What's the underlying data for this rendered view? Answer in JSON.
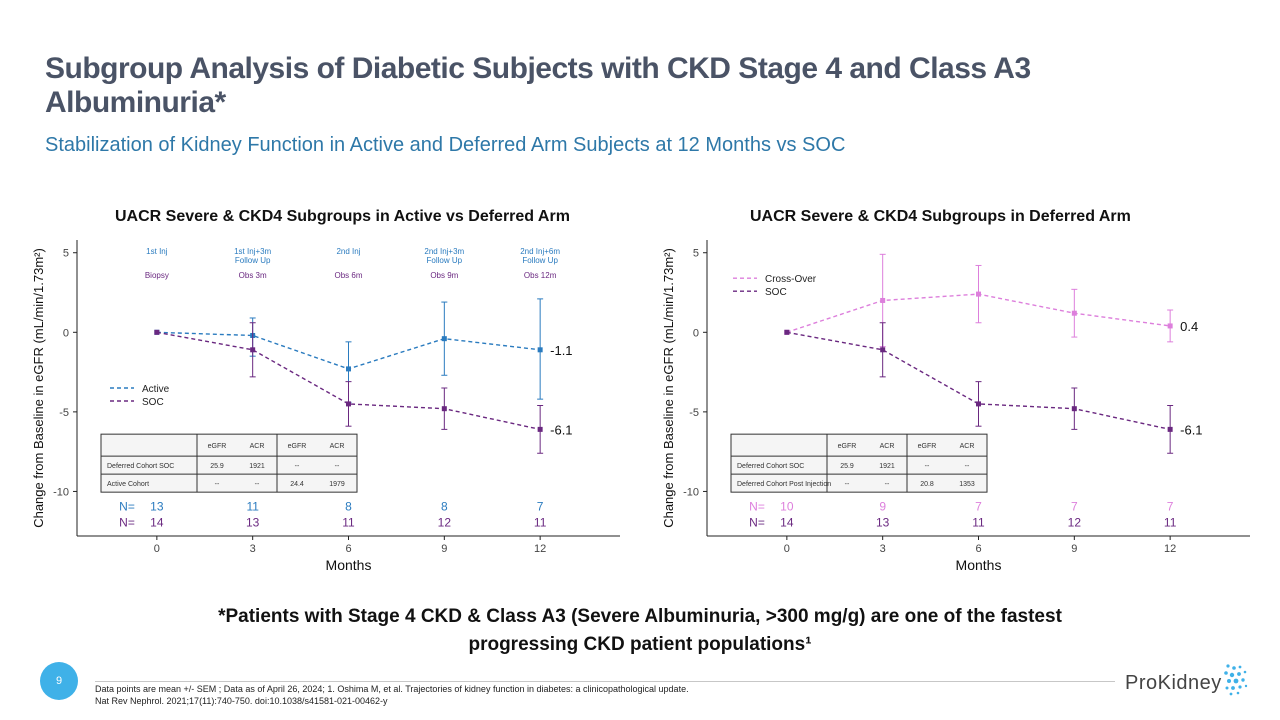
{
  "slide": {
    "title": "Subgroup Analysis of Diabetic Subjects with CKD Stage 4 and Class A3 Albuminuria*",
    "subtitle": "Stabilization of Kidney Function in Active and Deferred Arm Subjects at 12 Months vs SOC",
    "footnote_line1": "*Patients with Stage 4 CKD & Class A3 (Severe Albuminuria, >300 mg/g) are one of the fastest",
    "footnote_line2": "progressing CKD patient populations¹",
    "page_number": "9",
    "references_line1": "Data points are mean +/- SEM ; Data as of April 26, 2024; 1. Oshima M, et al. Trajectories of kidney function in diabetes: a clinicopathological update.",
    "references_line2": "Nat Rev Nephrol. 2021;17(11):740-750. doi:10.1038/s41581-021-00462-y",
    "logo_text": "ProKidney"
  },
  "chart_data": [
    {
      "type": "line",
      "title": "UACR Severe & CKD4 Subgroups in Active vs Deferred Arm",
      "xlabel": "Months",
      "ylabel": "Change from Baseline in eGFR (mL/min/1.73m²)",
      "x": [
        0,
        3,
        6,
        9,
        12
      ],
      "xlim": [
        -2.5,
        14.5
      ],
      "ylim": [
        -12.8,
        5.8
      ],
      "yticks": [
        5,
        0,
        -5,
        -10
      ],
      "grid": false,
      "legend_position": "left",
      "series": [
        {
          "name": "Active",
          "color": "#2a7bbf",
          "values": [
            0,
            -0.2,
            -2.3,
            -0.4,
            -1.1
          ],
          "err_low": [
            0,
            -1.3,
            -2.1,
            -2.3,
            -3.1
          ],
          "err_high": [
            0,
            1.1,
            1.7,
            2.3,
            3.2
          ],
          "end_label": "-1.1",
          "n_label": "N=",
          "n": [
            "13",
            "11",
            "8",
            "8",
            "7"
          ]
        },
        {
          "name": "SOC",
          "color": "#6a2880",
          "values": [
            0,
            -1.1,
            -4.5,
            -4.8,
            -6.1
          ],
          "err_low": [
            0,
            -1.7,
            -1.4,
            -1.3,
            -1.5
          ],
          "err_high": [
            0,
            1.7,
            1.4,
            1.3,
            1.5
          ],
          "end_label": "-6.1",
          "n_label": "N=",
          "n": [
            "14",
            "13",
            "11",
            "12",
            "11"
          ]
        }
      ],
      "events": [
        {
          "x": 0,
          "top": "1st Inj",
          "top2": "",
          "bottom": "Biopsy"
        },
        {
          "x": 3,
          "top": "1st Inj+3m",
          "top2": "Follow Up",
          "bottom": "Obs 3m"
        },
        {
          "x": 6,
          "top": "2nd Inj",
          "top2": "",
          "bottom": "Obs 6m"
        },
        {
          "x": 9,
          "top": "2nd Inj+3m",
          "top2": "Follow Up",
          "bottom": "Obs 9m"
        },
        {
          "x": 12,
          "top": "2nd Inj+6m",
          "top2": "Follow Up",
          "bottom": "Obs 12m"
        }
      ],
      "table": {
        "headers": [
          "",
          "eGFR",
          "ACR",
          "eGFR",
          "ACR"
        ],
        "rows": [
          [
            "Deferred Cohort SOC",
            "25.9",
            "1921",
            "--",
            "--"
          ],
          [
            "Active Cohort",
            "--",
            "--",
            "24.4",
            "1979"
          ]
        ]
      }
    },
    {
      "type": "line",
      "title": "UACR Severe & CKD4 Subgroups in Deferred Arm",
      "xlabel": "Months",
      "ylabel": "Change from Baseline in eGFR (mL/min/1.73m²)",
      "x": [
        0,
        3,
        6,
        9,
        12
      ],
      "xlim": [
        -2.5,
        14.5
      ],
      "ylim": [
        -12.8,
        5.8
      ],
      "yticks": [
        5,
        0,
        -5,
        -10
      ],
      "grid": false,
      "legend_position": "top-left",
      "series": [
        {
          "name": "Cross-Over",
          "color": "#dd7fdc",
          "values": [
            0,
            2.0,
            2.4,
            1.2,
            0.4
          ],
          "err_low": [
            0,
            -2.9,
            -1.8,
            -1.5,
            -1.0
          ],
          "err_high": [
            0,
            2.9,
            1.8,
            1.5,
            1.0
          ],
          "end_label": "0.4",
          "n_label": "N=",
          "n": [
            "10",
            "9",
            "7",
            "7",
            "7"
          ]
        },
        {
          "name": "SOC",
          "color": "#6a2880",
          "values": [
            0,
            -1.1,
            -4.5,
            -4.8,
            -6.1
          ],
          "err_low": [
            0,
            -1.7,
            -1.4,
            -1.3,
            -1.5
          ],
          "err_high": [
            0,
            1.7,
            1.4,
            1.3,
            1.5
          ],
          "end_label": "-6.1",
          "n_label": "N=",
          "n": [
            "14",
            "13",
            "11",
            "12",
            "11"
          ]
        }
      ],
      "events": [],
      "table": {
        "headers": [
          "",
          "eGFR",
          "ACR",
          "eGFR",
          "ACR"
        ],
        "rows": [
          [
            "Deferred Cohort SOC",
            "25.9",
            "1921",
            "--",
            "--"
          ],
          [
            "Deferred Cohort Post Injection",
            "--",
            "--",
            "20.8",
            "1353"
          ]
        ]
      }
    }
  ]
}
